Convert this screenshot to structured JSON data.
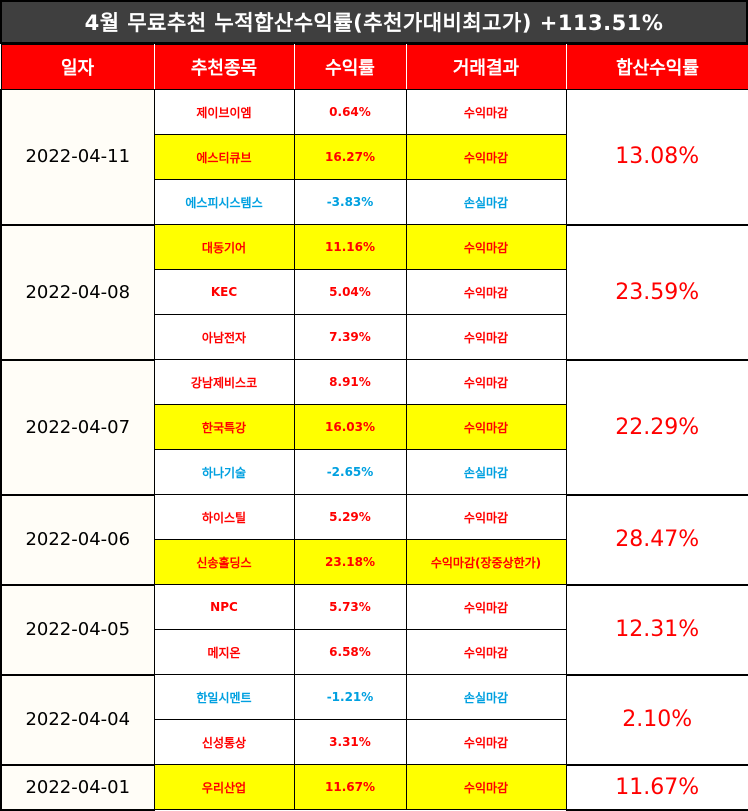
{
  "title": "4월 무료추천 누적합산수익률(추천가대비최고가) +113.51%",
  "headers": [
    "일자",
    "추천종목",
    "수익률",
    "거래결과",
    "합산수익률"
  ],
  "colors": {
    "title_bg": "#3f3f3f",
    "header_bg": "#ff0000",
    "highlight": "#ffff00",
    "profit": "#ff0000",
    "loss": "#00a0e0"
  },
  "groups": [
    {
      "date": "2022-04-11",
      "total": "13.08%",
      "rows": [
        {
          "stock": "제이브이엠",
          "rate": "0.64%",
          "result": "수익마감",
          "loss": false,
          "highlight": false
        },
        {
          "stock": "에스티큐브",
          "rate": "16.27%",
          "result": "수익마감",
          "loss": false,
          "highlight": true
        },
        {
          "stock": "에스피시스템스",
          "rate": "-3.83%",
          "result": "손실마감",
          "loss": true,
          "highlight": false
        }
      ]
    },
    {
      "date": "2022-04-08",
      "total": "23.59%",
      "rows": [
        {
          "stock": "대동기어",
          "rate": "11.16%",
          "result": "수익마감",
          "loss": false,
          "highlight": true
        },
        {
          "stock": "KEC",
          "rate": "5.04%",
          "result": "수익마감",
          "loss": false,
          "highlight": false
        },
        {
          "stock": "아남전자",
          "rate": "7.39%",
          "result": "수익마감",
          "loss": false,
          "highlight": false
        }
      ]
    },
    {
      "date": "2022-04-07",
      "total": "22.29%",
      "rows": [
        {
          "stock": "강남제비스코",
          "rate": "8.91%",
          "result": "수익마감",
          "loss": false,
          "highlight": false
        },
        {
          "stock": "한국특강",
          "rate": "16.03%",
          "result": "수익마감",
          "loss": false,
          "highlight": true
        },
        {
          "stock": "하나기술",
          "rate": "-2.65%",
          "result": "손실마감",
          "loss": true,
          "highlight": false
        }
      ]
    },
    {
      "date": "2022-04-06",
      "total": "28.47%",
      "rows": [
        {
          "stock": "하이스틸",
          "rate": "5.29%",
          "result": "수익마감",
          "loss": false,
          "highlight": false
        },
        {
          "stock": "신송홀딩스",
          "rate": "23.18%",
          "result": "수익마감(장중상한가)",
          "loss": false,
          "highlight": true
        }
      ]
    },
    {
      "date": "2022-04-05",
      "total": "12.31%",
      "rows": [
        {
          "stock": "NPC",
          "rate": "5.73%",
          "result": "수익마감",
          "loss": false,
          "highlight": false
        },
        {
          "stock": "메지온",
          "rate": "6.58%",
          "result": "수익마감",
          "loss": false,
          "highlight": false
        }
      ]
    },
    {
      "date": "2022-04-04",
      "total": "2.10%",
      "rows": [
        {
          "stock": "한일시멘트",
          "rate": "-1.21%",
          "result": "손실마감",
          "loss": true,
          "highlight": false
        },
        {
          "stock": "신성통상",
          "rate": "3.31%",
          "result": "수익마감",
          "loss": false,
          "highlight": false
        }
      ]
    },
    {
      "date": "2022-04-01",
      "total": "11.67%",
      "rows": [
        {
          "stock": "우리산업",
          "rate": "11.67%",
          "result": "수익마감",
          "loss": false,
          "highlight": true
        }
      ]
    }
  ]
}
